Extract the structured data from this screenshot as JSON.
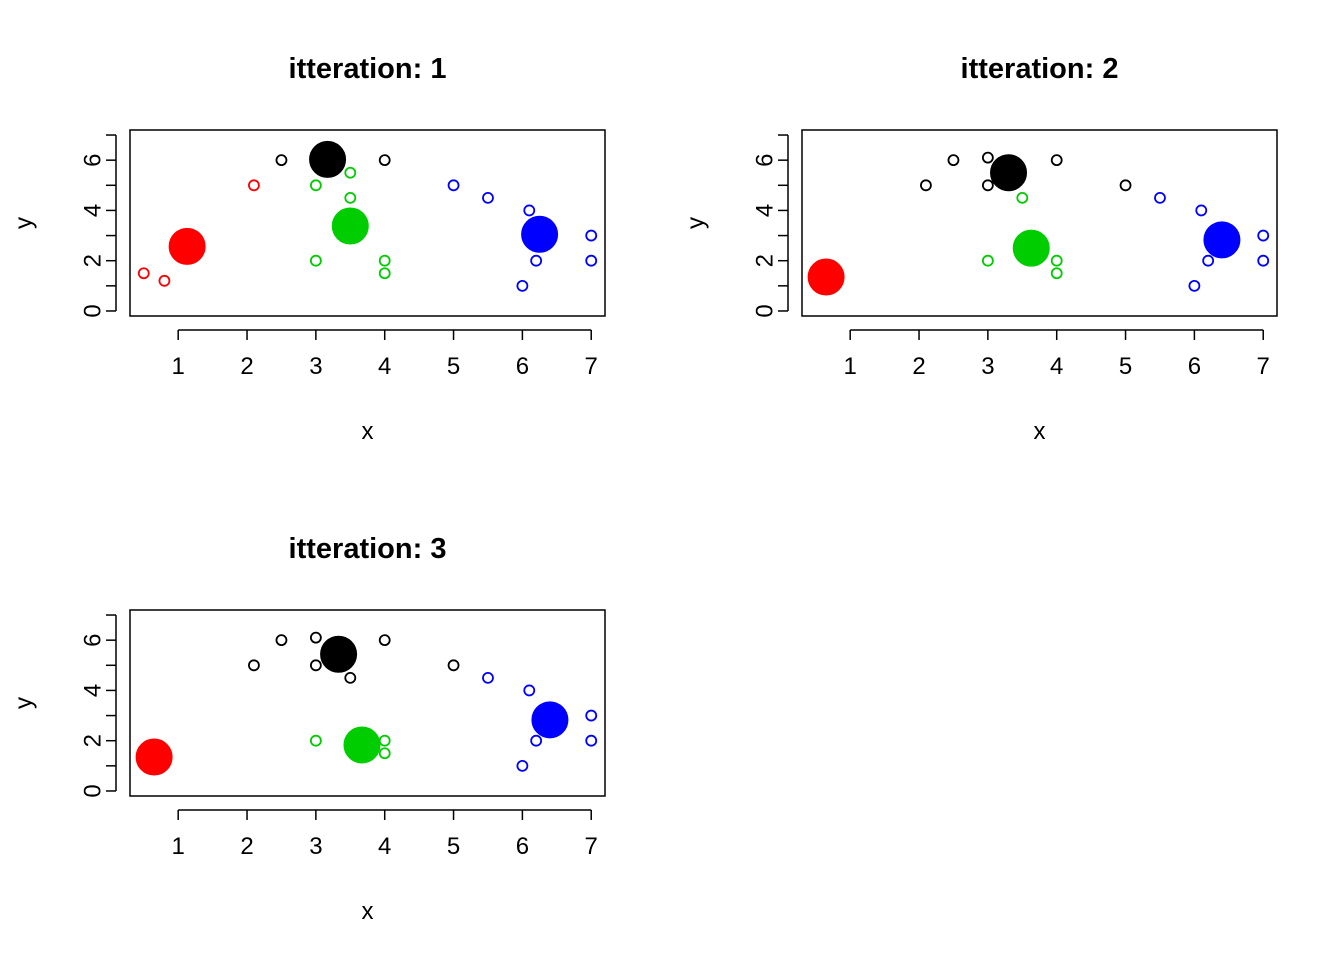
{
  "colors": {
    "red": "#ff0000",
    "green": "#00cd00",
    "blue": "#0000ff",
    "black": "#000000"
  },
  "chart_data": [
    {
      "type": "scatter",
      "title": "itteration: 1",
      "xlabel": "x",
      "ylabel": "y",
      "x_ticks": [
        1,
        2,
        3,
        4,
        5,
        6,
        7
      ],
      "y_ticks": [
        0,
        2,
        4,
        6
      ],
      "xlim": [
        0.3,
        7.2
      ],
      "ylim": [
        -0.2,
        7.2
      ],
      "grid": false,
      "series": [
        {
          "color": "red",
          "marker": "open",
          "points": [
            [
              0.5,
              1.5
            ],
            [
              0.8,
              1.2
            ],
            [
              2.1,
              5.0
            ]
          ]
        },
        {
          "color": "black",
          "marker": "open",
          "points": [
            [
              2.5,
              6.0
            ],
            [
              4.0,
              6.0
            ]
          ]
        },
        {
          "color": "green",
          "marker": "open",
          "points": [
            [
              3.0,
              5.0
            ],
            [
              3.5,
              5.5
            ],
            [
              3.5,
              4.5
            ],
            [
              3.0,
              2.0
            ],
            [
              4.0,
              2.0
            ],
            [
              4.0,
              1.5
            ]
          ]
        },
        {
          "color": "blue",
          "marker": "open",
          "points": [
            [
              5.0,
              5.0
            ],
            [
              5.5,
              4.5
            ],
            [
              6.1,
              4.0
            ],
            [
              6.2,
              2.0
            ],
            [
              6.0,
              1.0
            ],
            [
              7.0,
              3.0
            ],
            [
              7.0,
              2.0
            ]
          ]
        },
        {
          "color": "red",
          "marker": "centroid",
          "points": [
            [
              1.13,
              2.57
            ]
          ]
        },
        {
          "color": "black",
          "marker": "centroid",
          "points": [
            [
              3.17,
              6.03
            ]
          ]
        },
        {
          "color": "green",
          "marker": "centroid",
          "points": [
            [
              3.5,
              3.38
            ]
          ]
        },
        {
          "color": "blue",
          "marker": "centroid",
          "points": [
            [
              6.25,
              3.05
            ]
          ]
        }
      ]
    },
    {
      "type": "scatter",
      "title": "itteration: 2",
      "xlabel": "x",
      "ylabel": "y",
      "x_ticks": [
        1,
        2,
        3,
        4,
        5,
        6,
        7
      ],
      "y_ticks": [
        0,
        2,
        4,
        6
      ],
      "xlim": [
        0.3,
        7.2
      ],
      "ylim": [
        -0.2,
        7.2
      ],
      "grid": false,
      "series": [
        {
          "color": "black",
          "marker": "open",
          "points": [
            [
              2.1,
              5.0
            ],
            [
              2.5,
              6.0
            ],
            [
              3.0,
              6.1
            ],
            [
              3.0,
              5.0
            ],
            [
              4.0,
              6.0
            ],
            [
              5.0,
              5.0
            ]
          ]
        },
        {
          "color": "green",
          "marker": "open",
          "points": [
            [
              3.5,
              4.5
            ],
            [
              3.0,
              2.0
            ],
            [
              4.0,
              2.0
            ],
            [
              4.0,
              1.5
            ]
          ]
        },
        {
          "color": "blue",
          "marker": "open",
          "points": [
            [
              5.5,
              4.5
            ],
            [
              6.1,
              4.0
            ],
            [
              6.2,
              2.0
            ],
            [
              6.0,
              1.0
            ],
            [
              7.0,
              3.0
            ],
            [
              7.0,
              2.0
            ]
          ]
        },
        {
          "color": "red",
          "marker": "centroid",
          "points": [
            [
              0.65,
              1.35
            ]
          ]
        },
        {
          "color": "black",
          "marker": "centroid",
          "points": [
            [
              3.3,
              5.5
            ]
          ]
        },
        {
          "color": "green",
          "marker": "centroid",
          "points": [
            [
              3.63,
              2.5
            ]
          ]
        },
        {
          "color": "blue",
          "marker": "centroid",
          "points": [
            [
              6.4,
              2.83
            ]
          ]
        }
      ]
    },
    {
      "type": "scatter",
      "title": "itteration: 3",
      "xlabel": "x",
      "ylabel": "y",
      "x_ticks": [
        1,
        2,
        3,
        4,
        5,
        6,
        7
      ],
      "y_ticks": [
        0,
        2,
        4,
        6
      ],
      "xlim": [
        0.3,
        7.2
      ],
      "ylim": [
        -0.2,
        7.2
      ],
      "grid": false,
      "series": [
        {
          "color": "black",
          "marker": "open",
          "points": [
            [
              2.1,
              5.0
            ],
            [
              2.5,
              6.0
            ],
            [
              3.0,
              6.1
            ],
            [
              3.0,
              5.0
            ],
            [
              3.5,
              4.5
            ],
            [
              4.0,
              6.0
            ],
            [
              5.0,
              5.0
            ]
          ]
        },
        {
          "color": "green",
          "marker": "open",
          "points": [
            [
              3.0,
              2.0
            ],
            [
              4.0,
              2.0
            ],
            [
              4.0,
              1.5
            ]
          ]
        },
        {
          "color": "blue",
          "marker": "open",
          "points": [
            [
              5.5,
              4.5
            ],
            [
              6.1,
              4.0
            ],
            [
              6.2,
              2.0
            ],
            [
              6.0,
              1.0
            ],
            [
              7.0,
              3.0
            ],
            [
              7.0,
              2.0
            ]
          ]
        },
        {
          "color": "red",
          "marker": "centroid",
          "points": [
            [
              0.65,
              1.35
            ]
          ]
        },
        {
          "color": "black",
          "marker": "centroid",
          "points": [
            [
              3.33,
              5.44
            ]
          ]
        },
        {
          "color": "green",
          "marker": "centroid",
          "points": [
            [
              3.67,
              1.83
            ]
          ]
        },
        {
          "color": "blue",
          "marker": "centroid",
          "points": [
            [
              6.4,
              2.83
            ]
          ]
        }
      ]
    }
  ]
}
